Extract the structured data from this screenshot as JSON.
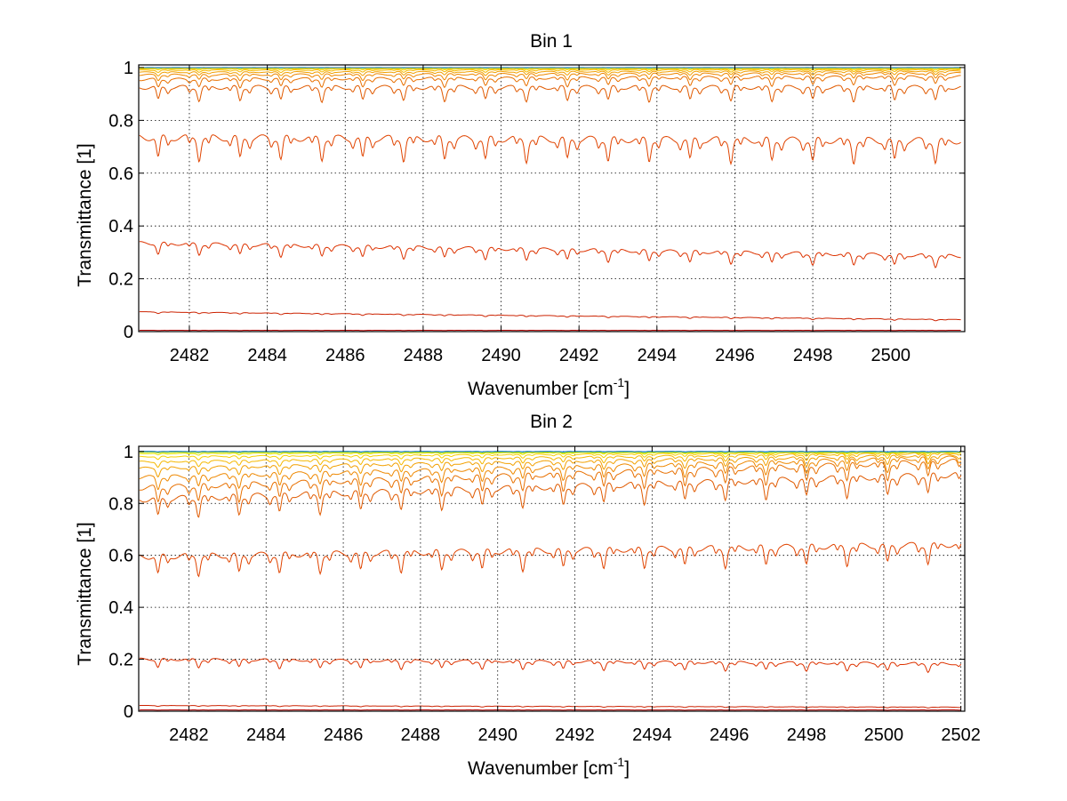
{
  "figure": {
    "background": "#ffffff"
  },
  "chart_data": [
    {
      "type": "line",
      "title": "Bin 1",
      "xlabel": "Wavenumber [cm",
      "xlabel_sup": "-1",
      "xlabel_end": "]",
      "ylabel": "Transmittance [1]",
      "xlim": [
        2480.7,
        2501.9
      ],
      "ylim": [
        0,
        1.01
      ],
      "grid": true,
      "x_ticks": [
        2482,
        2484,
        2486,
        2488,
        2490,
        2492,
        2494,
        2496,
        2498,
        2500
      ],
      "x_tick_labels": [
        "2482",
        "2484",
        "2486",
        "2488",
        "2490",
        "2492",
        "2494",
        "2496",
        "2498",
        "2500"
      ],
      "y_ticks": [
        0,
        0.2,
        0.4,
        0.6,
        0.8,
        1
      ],
      "y_tick_labels": [
        "0",
        "0.2",
        "0.4",
        "0.6",
        "0.8",
        "1"
      ],
      "line_spacing_wavenumber": 1.05,
      "series": [
        {
          "base": 0.0,
          "depth": 0.0,
          "slope": 0.0,
          "color": "#8b0000"
        },
        {
          "base": 0.005,
          "depth": 0.001,
          "slope": 0.0,
          "color": "#b00000"
        },
        {
          "base": 0.075,
          "depth": 0.005,
          "slope": -0.0014,
          "color": "#cc2200"
        },
        {
          "base": 0.335,
          "depth": 0.04,
          "slope": -0.0023,
          "color": "#dd3300"
        },
        {
          "base": 0.735,
          "depth": 0.08,
          "slope": -0.0006,
          "color": "#e04400"
        },
        {
          "base": 0.925,
          "depth": 0.05,
          "slope": 0.0,
          "color": "#e05a00"
        },
        {
          "base": 0.955,
          "depth": 0.03,
          "slope": 0.0005,
          "color": "#e87000"
        },
        {
          "base": 0.972,
          "depth": 0.02,
          "slope": 0.0003,
          "color": "#ee8800"
        },
        {
          "base": 0.982,
          "depth": 0.012,
          "slope": 0.0002,
          "color": "#f2a000"
        },
        {
          "base": 0.99,
          "depth": 0.008,
          "slope": 0.0001,
          "color": "#f5b800"
        },
        {
          "base": 0.995,
          "depth": 0.004,
          "slope": 0.0,
          "color": "#f8d000"
        },
        {
          "base": 0.998,
          "depth": 0.002,
          "slope": 0.0,
          "color": "#e6e600"
        },
        {
          "base": 0.999,
          "depth": 0.001,
          "slope": 0.0,
          "color": "#b8e000"
        },
        {
          "base": 1.0,
          "depth": 0.001,
          "slope": 0.0,
          "color": "#00c8c8"
        },
        {
          "base": 1.0,
          "depth": 0.0,
          "slope": 0.0,
          "color": "#2070d0"
        }
      ]
    },
    {
      "type": "line",
      "title": "Bin 2",
      "xlabel": "Wavenumber [cm",
      "xlabel_sup": "-1",
      "xlabel_end": "]",
      "ylabel": "Transmittance [1]",
      "xlim": [
        2480.7,
        2502.1
      ],
      "ylim": [
        0,
        1.02
      ],
      "grid": true,
      "x_ticks": [
        2482,
        2484,
        2486,
        2488,
        2490,
        2492,
        2494,
        2496,
        2498,
        2500,
        2502
      ],
      "x_tick_labels": [
        "2482",
        "2484",
        "2486",
        "2488",
        "2490",
        "2492",
        "2494",
        "2496",
        "2498",
        "2500",
        "2502"
      ],
      "y_ticks": [
        0,
        0.2,
        0.4,
        0.6,
        0.8,
        1
      ],
      "y_tick_labels": [
        "0",
        "0.2",
        "0.4",
        "0.6",
        "0.8",
        "1"
      ],
      "line_spacing_wavenumber": 1.05,
      "series": [
        {
          "base": 0.0,
          "depth": 0.0,
          "slope": 0.0,
          "color": "#8b0000"
        },
        {
          "base": 0.005,
          "depth": 0.001,
          "slope": 0.0,
          "color": "#b00000"
        },
        {
          "base": 0.022,
          "depth": 0.003,
          "slope": -0.0003,
          "color": "#cc2200"
        },
        {
          "base": 0.2,
          "depth": 0.03,
          "slope": -0.0008,
          "color": "#dd3300"
        },
        {
          "base": 0.595,
          "depth": 0.07,
          "slope": 0.0022,
          "color": "#e04400"
        },
        {
          "base": 0.815,
          "depth": 0.07,
          "slope": 0.0045,
          "color": "#e05a00"
        },
        {
          "base": 0.86,
          "depth": 0.06,
          "slope": 0.0048,
          "color": "#e87000"
        },
        {
          "base": 0.9,
          "depth": 0.045,
          "slope": 0.0036,
          "color": "#ee8800"
        },
        {
          "base": 0.935,
          "depth": 0.03,
          "slope": 0.0024,
          "color": "#f2a000"
        },
        {
          "base": 0.96,
          "depth": 0.02,
          "slope": 0.0016,
          "color": "#f5b800"
        },
        {
          "base": 0.98,
          "depth": 0.012,
          "slope": 0.0008,
          "color": "#f8d000"
        },
        {
          "base": 0.992,
          "depth": 0.006,
          "slope": 0.0003,
          "color": "#e6e600"
        },
        {
          "base": 0.997,
          "depth": 0.003,
          "slope": 0.0,
          "color": "#b8e000"
        },
        {
          "base": 1.0,
          "depth": 0.002,
          "slope": 0.0,
          "color": "#00c8c8"
        },
        {
          "base": 1.0,
          "depth": 0.001,
          "slope": 0.0,
          "color": "#2070d0"
        }
      ]
    }
  ]
}
